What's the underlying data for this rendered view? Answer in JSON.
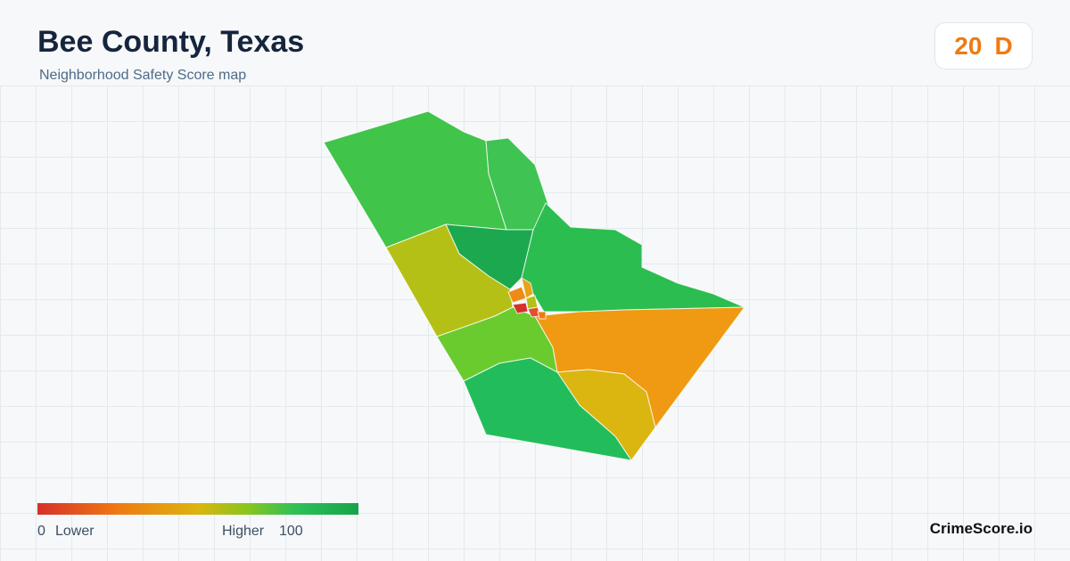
{
  "header": {
    "title": "Bee County, Texas",
    "subtitle": "Neighborhood Safety Score map"
  },
  "score": {
    "value": "20",
    "grade": "D"
  },
  "legend": {
    "min": "0",
    "min_label": "Lower",
    "max_label": "Higher",
    "max": "100"
  },
  "brand": "CrimeScore.io"
}
